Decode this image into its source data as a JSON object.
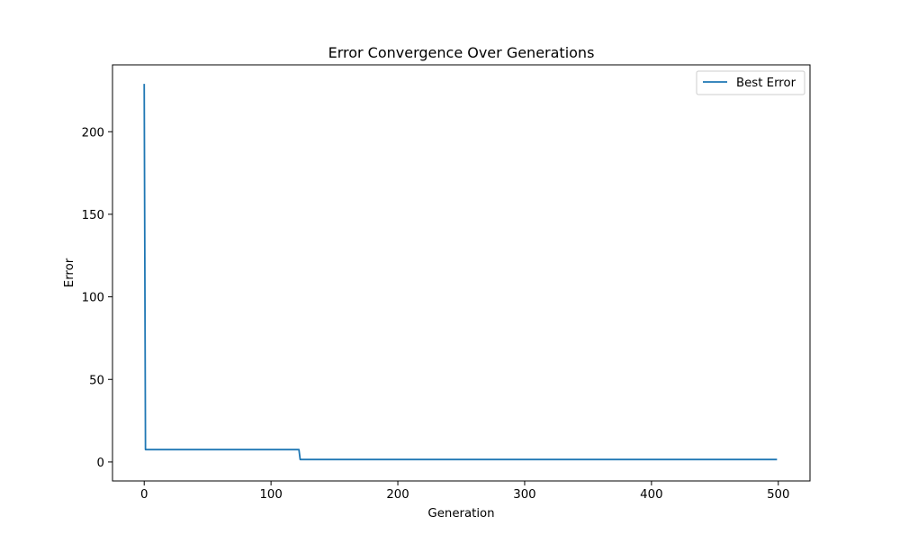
{
  "chart_data": {
    "type": "line",
    "title": "Error Convergence Over Generations",
    "xlabel": "Generation",
    "ylabel": "Error",
    "xlim": [
      -25,
      525
    ],
    "ylim": [
      -11.5,
      240.5
    ],
    "xticks": [
      0,
      100,
      200,
      300,
      400,
      500
    ],
    "yticks": [
      0,
      50,
      100,
      150,
      200
    ],
    "grid": false,
    "legend_position": "top-right",
    "series": [
      {
        "name": "Best Error",
        "color": "#1f77b4",
        "x": [
          0,
          1,
          2,
          50,
          100,
          121,
          122,
          123,
          150,
          200,
          250,
          300,
          350,
          400,
          450,
          499
        ],
        "y": [
          229,
          7.5,
          7.5,
          7.5,
          7.5,
          7.5,
          7.5,
          1.5,
          1.5,
          1.5,
          1.5,
          1.5,
          1.5,
          1.5,
          1.5,
          1.5
        ]
      }
    ]
  }
}
